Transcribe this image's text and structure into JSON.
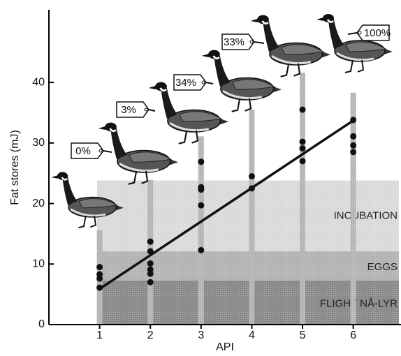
{
  "chart_data": {
    "type": "scatter",
    "x_label": "API",
    "y_label": "Fat stores (mJ)",
    "xlim": [
      0,
      6.9
    ],
    "ylim": [
      0,
      52
    ],
    "xticks": [
      1,
      2,
      3,
      4,
      5,
      6
    ],
    "yticks": [
      0,
      10,
      20,
      30,
      40
    ],
    "x": [
      1,
      1,
      1,
      1,
      2,
      2,
      2,
      2,
      2,
      2,
      3,
      3,
      3,
      3,
      3,
      4,
      4,
      5,
      5,
      5,
      5,
      6,
      6,
      6,
      6
    ],
    "values": [
      9.5,
      8.3,
      7.6,
      6.1,
      13.7,
      12.1,
      10.1,
      9.1,
      8.4,
      7.0,
      26.9,
      22.7,
      22.3,
      19.7,
      12.3,
      24.5,
      22.5,
      35.5,
      30.2,
      29.1,
      27.0,
      33.8,
      31.1,
      29.6,
      28.5
    ],
    "color": "#111111",
    "fit_line": {
      "x": [
        1,
        6
      ],
      "values": [
        5.9,
        33.7
      ],
      "color": "#111111"
    },
    "columns": {
      "x": [
        1,
        2,
        3,
        4,
        5,
        6
      ],
      "values": [
        15.6,
        23.9,
        31.1,
        35.5,
        41.6,
        38.3
      ],
      "color": "#b5b5b5"
    },
    "regions": [
      {
        "name": "FLIGHT NÅ-LYR",
        "x": [
          0.95,
          6.9
        ],
        "from": 0,
        "to": 7.3,
        "color": "#8a8a8a"
      },
      {
        "name": "EGGS",
        "x": [
          0.95,
          6.9
        ],
        "from": 7.3,
        "to": 12.1,
        "color": "#b3b3b3"
      },
      {
        "name": "INCUBATION",
        "x": [
          0.95,
          6.9
        ],
        "from": 12.1,
        "to": 23.8,
        "color": "#dadada"
      }
    ],
    "goose_labels": [
      "0%",
      "3%",
      "34%",
      "33%",
      "100%"
    ]
  }
}
